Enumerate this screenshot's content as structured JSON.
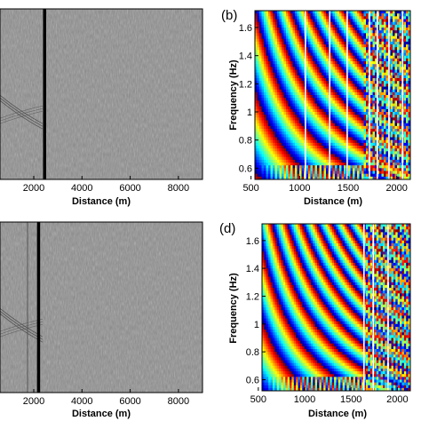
{
  "chart_data": [
    {
      "type": "heatmap",
      "panel": "a",
      "panel_label": "",
      "content": "seismic-wavefield-gray",
      "xlabel": "Distance (m)",
      "ylabel": "",
      "x_ticks": [
        "2000",
        "4000",
        "6000",
        "8000"
      ],
      "x_tick_values": [
        2000,
        4000,
        6000,
        8000
      ],
      "xlim": [
        600,
        9000
      ],
      "source_trace_distance": 2450,
      "colormap": "gray"
    },
    {
      "type": "heatmap",
      "panel": "b",
      "panel_label": "(b)",
      "content": "dispersion-phase-jet",
      "xlabel": "Distance (m)",
      "ylabel": "Frequency (Hz)",
      "x_ticks": [
        "500",
        "1000",
        "1500",
        "2000"
      ],
      "x_tick_values": [
        500,
        1000,
        1500,
        2000
      ],
      "y_ticks": [
        "0.6",
        "0.8",
        "1",
        "1.2",
        "1.4",
        "1.6"
      ],
      "y_tick_values": [
        0.6,
        0.8,
        1.0,
        1.2,
        1.4,
        1.6
      ],
      "xlim": [
        540,
        2140
      ],
      "ylim": [
        0.52,
        1.72
      ],
      "gap_traces": [
        1060,
        1310,
        1490,
        1720,
        1800,
        1920,
        2060
      ],
      "colormap": "jet"
    },
    {
      "type": "heatmap",
      "panel": "c",
      "panel_label": "",
      "content": "seismic-wavefield-gray",
      "xlabel": "Distance (m)",
      "ylabel": "",
      "x_ticks": [
        "2000",
        "4000",
        "6000",
        "8000"
      ],
      "x_tick_values": [
        2000,
        4000,
        6000,
        8000
      ],
      "xlim": [
        600,
        9000
      ],
      "source_trace_distance": 2200,
      "colormap": "gray"
    },
    {
      "type": "heatmap",
      "panel": "d",
      "panel_label": "(d)",
      "content": "dispersion-phase-jet",
      "xlabel": "Distance (m)",
      "ylabel": "Frequency (Hz)",
      "x_ticks": [
        "500",
        "1000",
        "1500",
        "2000"
      ],
      "x_tick_values": [
        500,
        1000,
        1500,
        2000
      ],
      "y_ticks": [
        "0.6",
        "0.8",
        "1",
        "1.2",
        "1.4",
        "1.6"
      ],
      "y_tick_values": [
        0.6,
        0.8,
        1.0,
        1.2,
        1.4,
        1.6
      ],
      "xlim": [
        540,
        2140
      ],
      "ylim": [
        0.52,
        1.72
      ],
      "gap_traces": [
        1640,
        1740,
        1900
      ],
      "colormap": "jet"
    }
  ]
}
